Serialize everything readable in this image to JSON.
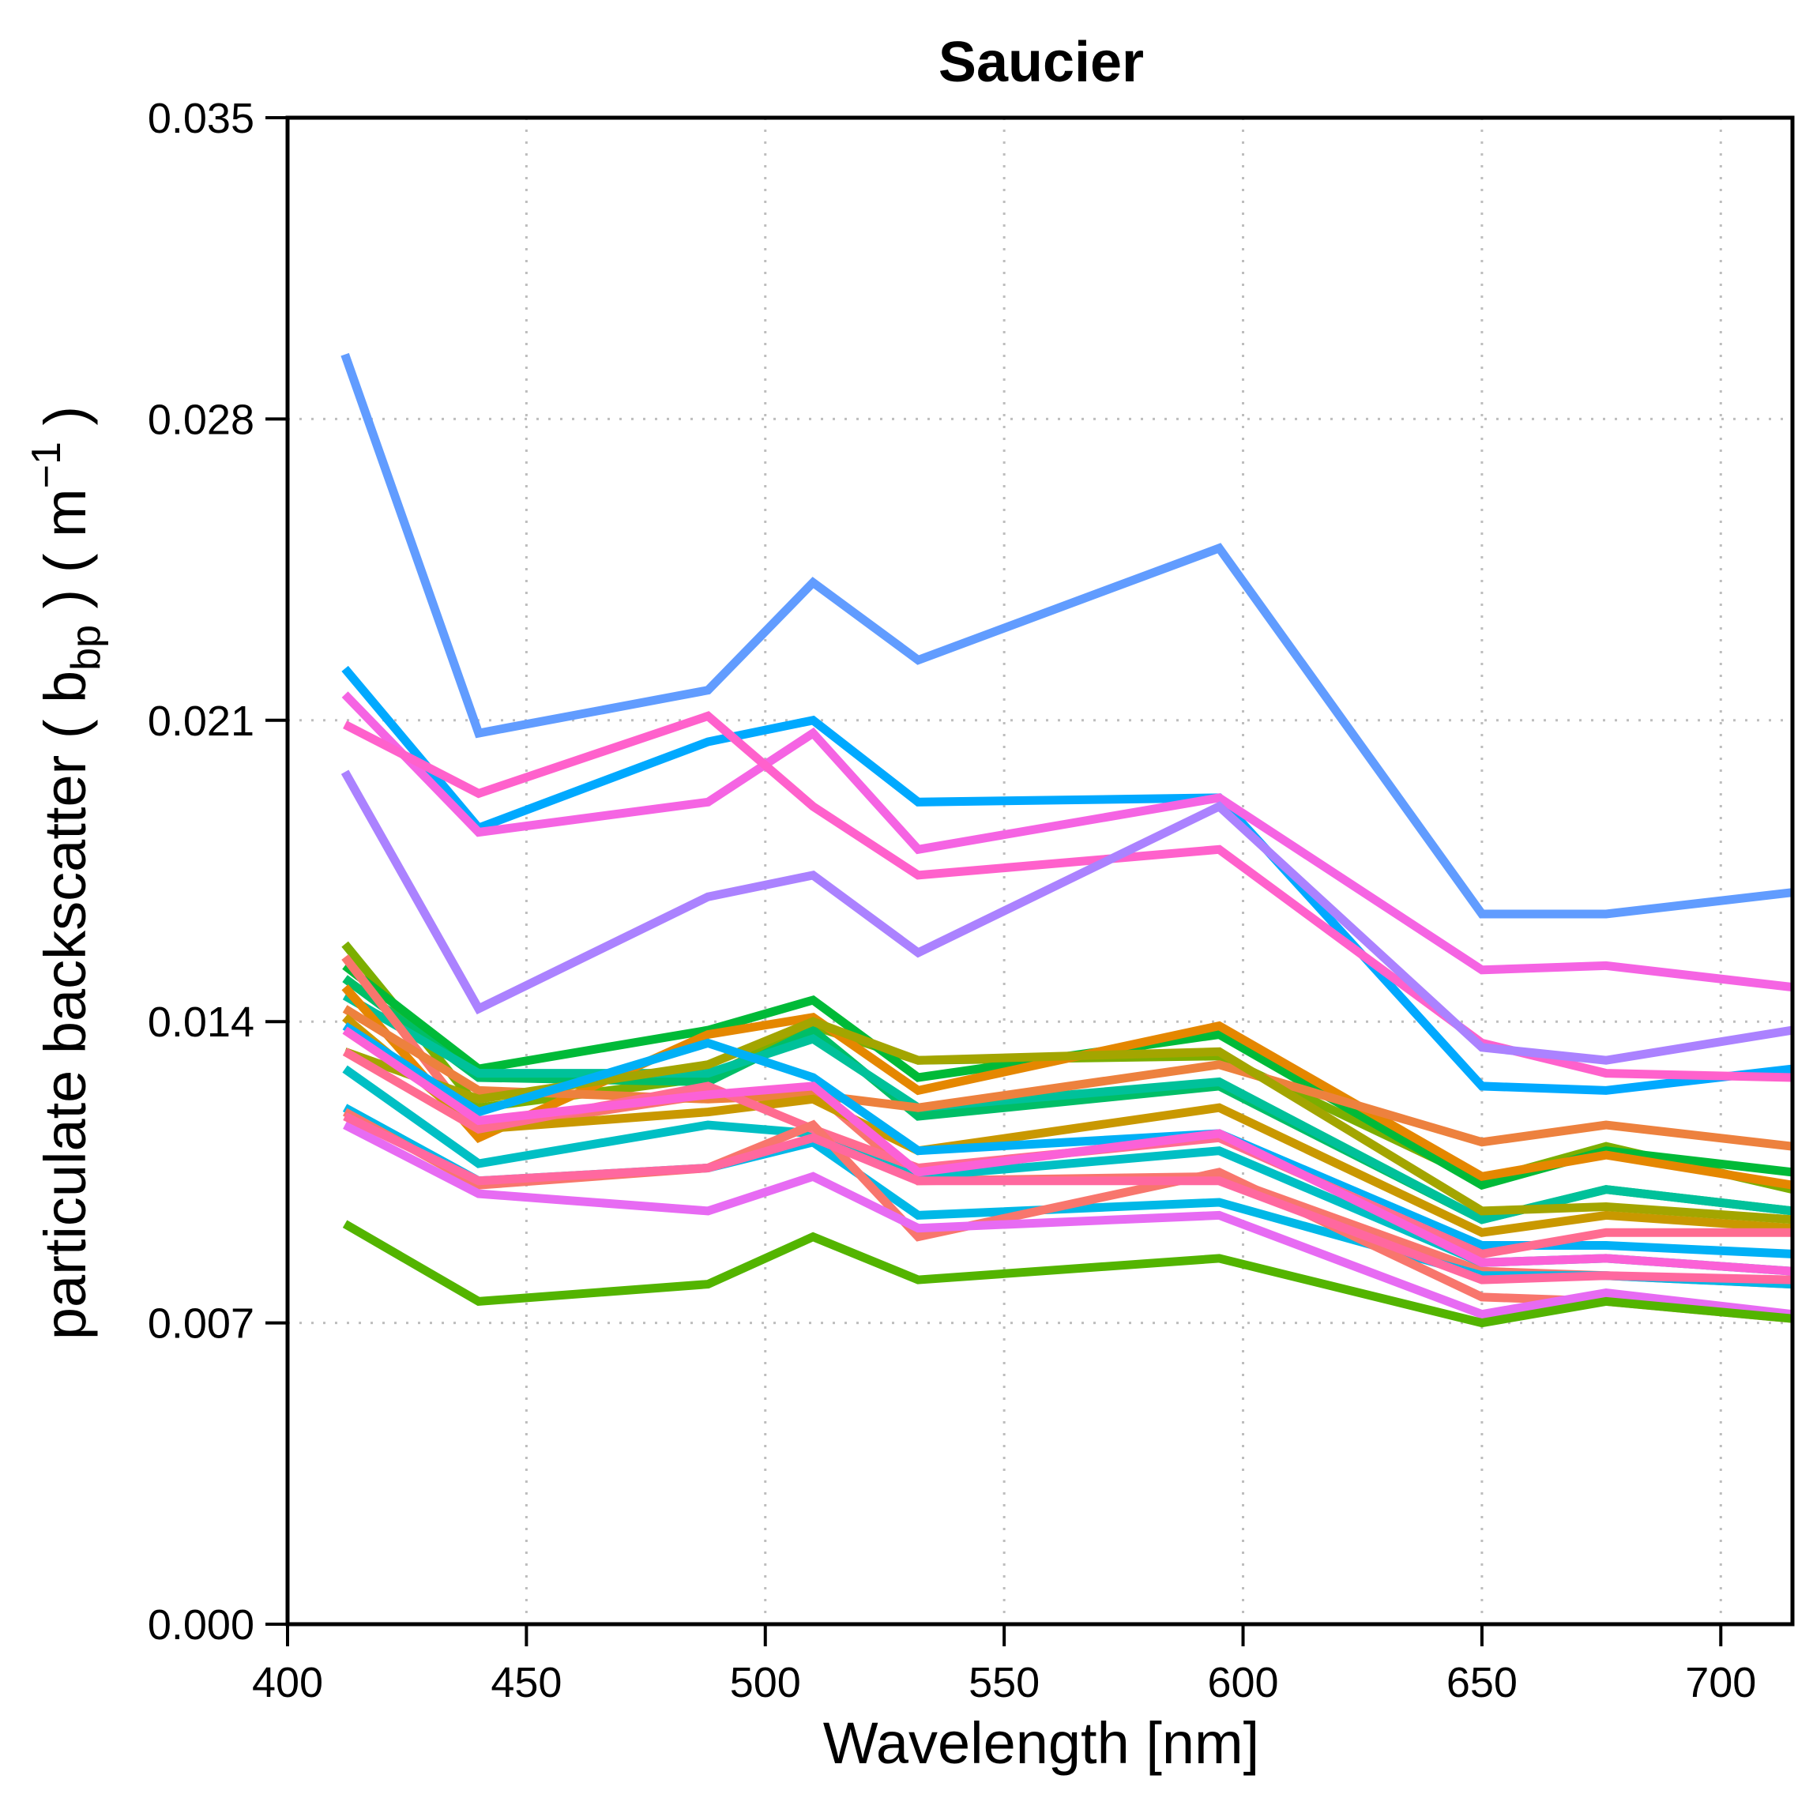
{
  "chart_data": {
    "type": "line",
    "title": "Saucier",
    "xlabel": "Wavelength [nm]",
    "ylabel": {
      "prefix": "particulate backscatter (  b",
      "subscript": "bp",
      "middle": "  ) ( m",
      "superscript": "−1",
      "suffix": " )"
    },
    "xlim": [
      400,
      715
    ],
    "ylim": [
      0.0,
      0.035
    ],
    "xticks": [
      400,
      450,
      500,
      550,
      600,
      650,
      700
    ],
    "xtick_labels": [
      "400",
      "450",
      "500",
      "550",
      "600",
      "650",
      "700"
    ],
    "yticks": [
      0.0,
      0.007,
      0.014,
      0.021,
      0.028,
      0.035
    ],
    "ytick_labels": [
      "0.000",
      "0.007",
      "0.014",
      "0.021",
      "0.028",
      "0.035"
    ],
    "grid": true,
    "x": [
      412,
      440,
      488,
      510,
      532,
      595,
      650,
      676,
      715
    ],
    "series": [
      {
        "color": "#619CFF",
        "values": [
          0.0295,
          0.0207,
          0.0217,
          0.0242,
          0.0224,
          0.025,
          0.0165,
          0.0165,
          0.017
        ]
      },
      {
        "color": "#00A9FF",
        "values": [
          0.0222,
          0.0185,
          0.0205,
          0.021,
          0.0191,
          0.0192,
          0.0125,
          0.0124,
          0.0129
        ]
      },
      {
        "color": "#F564E3",
        "values": [
          0.0216,
          0.0184,
          0.0191,
          0.0207,
          0.018,
          0.0192,
          0.0152,
          0.0153,
          0.0148
        ]
      },
      {
        "color": "#FF61CC",
        "values": [
          0.0209,
          0.0193,
          0.0211,
          0.019,
          0.0174,
          0.018,
          0.0135,
          0.0128,
          0.0127
        ]
      },
      {
        "color": "#AB82FF",
        "values": [
          0.0198,
          0.0143,
          0.0169,
          0.0174,
          0.0156,
          0.019,
          0.0134,
          0.0131,
          0.0138
        ]
      },
      {
        "color": "#7CAE00",
        "values": [
          0.0158,
          0.012,
          0.0127,
          0.0139,
          0.0131,
          0.0132,
          0.0103,
          0.0111,
          0.0101
        ]
      },
      {
        "color": "#00BA38",
        "values": [
          0.0153,
          0.0129,
          0.0138,
          0.0145,
          0.0127,
          0.0137,
          0.0102,
          0.011,
          0.0105
        ]
      },
      {
        "color": "#00BE67",
        "values": [
          0.015,
          0.0127,
          0.0126,
          0.0138,
          0.0118,
          0.0125,
          0.0094,
          0.0101,
          0.0096
        ]
      },
      {
        "color": "#00C19A",
        "values": [
          0.0146,
          0.0128,
          0.0128,
          0.0136,
          0.012,
          0.0126,
          0.0094,
          0.0101,
          0.0096
        ]
      },
      {
        "color": "#F8766D",
        "values": [
          0.0155,
          0.0115,
          0.0123,
          0.0124,
          0.0103,
          0.0104,
          0.0082,
          0.0081,
          0.0079
        ]
      },
      {
        "color": "#E58700",
        "values": [
          0.0148,
          0.0113,
          0.0137,
          0.0141,
          0.0124,
          0.0139,
          0.0104,
          0.0109,
          0.0102
        ]
      },
      {
        "color": "#ED813E",
        "values": [
          0.0143,
          0.0124,
          0.0122,
          0.0123,
          0.012,
          0.013,
          0.0112,
          0.0116,
          0.0111
        ]
      },
      {
        "color": "#C99800",
        "values": [
          0.0141,
          0.0115,
          0.0119,
          0.0122,
          0.011,
          0.012,
          0.0091,
          0.0095,
          0.0092
        ]
      },
      {
        "color": "#A3A500",
        "values": [
          0.0133,
          0.0122,
          0.013,
          0.014,
          0.0131,
          0.0133,
          0.0096,
          0.0097,
          0.0094
        ]
      },
      {
        "color": "#00B0F6",
        "values": [
          0.0139,
          0.0119,
          0.0135,
          0.0127,
          0.011,
          0.0114,
          0.0088,
          0.0088,
          0.0086
        ]
      },
      {
        "color": "#00BFC4",
        "values": [
          0.0129,
          0.0107,
          0.0116,
          0.0114,
          0.0104,
          0.011,
          0.0084,
          0.0085,
          0.0082
        ]
      },
      {
        "color": "#00B8E7",
        "values": [
          0.012,
          0.0103,
          0.0106,
          0.0112,
          0.0095,
          0.0098,
          0.0081,
          0.0081,
          0.0079
        ]
      },
      {
        "color": "#FF6C91",
        "values": [
          0.0133,
          0.0115,
          0.0125,
          0.0115,
          0.0106,
          0.0113,
          0.0086,
          0.0091,
          0.0091
        ]
      },
      {
        "color": "#FB61D7",
        "values": [
          0.0138,
          0.0117,
          0.0123,
          0.0125,
          0.0105,
          0.0114,
          0.0084,
          0.0085,
          0.0082
        ]
      },
      {
        "color": "#F8766D",
        "values": [
          0.0119,
          0.0102,
          0.0106,
          0.0116,
          0.009,
          0.0105,
          0.0076,
          0.0075,
          0.0071
        ]
      },
      {
        "color": "#E76BF3",
        "values": [
          0.0116,
          0.01,
          0.0096,
          0.0104,
          0.0092,
          0.0095,
          0.0072,
          0.0077,
          0.0072
        ]
      },
      {
        "color": "#FF689F",
        "values": [
          0.0118,
          0.0103,
          0.0106,
          0.0113,
          0.0103,
          0.0103,
          0.008,
          0.0081,
          0.008
        ]
      },
      {
        "color": "#53B400",
        "values": [
          0.0093,
          0.0075,
          0.0079,
          0.009,
          0.008,
          0.0085,
          0.007,
          0.0075,
          0.0071
        ]
      }
    ]
  }
}
